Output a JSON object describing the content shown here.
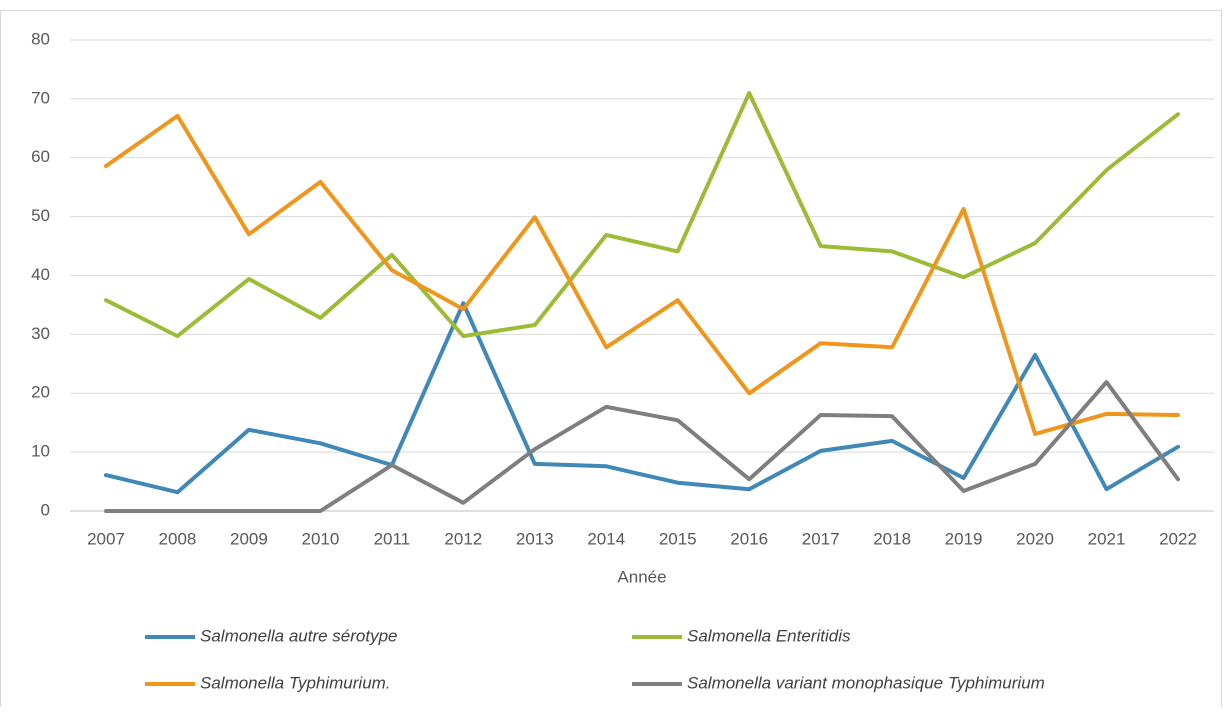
{
  "chart_data": {
    "type": "line",
    "x_label": "Année",
    "categories": [
      "2007",
      "2008",
      "2009",
      "2010",
      "2011",
      "2012",
      "2013",
      "2014",
      "2015",
      "2016",
      "2017",
      "2018",
      "2019",
      "2020",
      "2021",
      "2022"
    ],
    "ylim": [
      0,
      80
    ],
    "yticks": [
      0,
      10,
      20,
      30,
      40,
      50,
      60,
      70,
      80
    ],
    "grid": true,
    "legend": "bottom",
    "series": [
      {
        "name": "Salmonella autre sérotype",
        "color": "#3f88b8",
        "values": [
          6.1,
          3.2,
          13.8,
          11.5,
          7.8,
          35.3,
          8,
          7.6,
          4.8,
          3.7,
          10.2,
          11.9,
          5.6,
          26.5,
          3.7,
          10.9
        ]
      },
      {
        "name": "Salmonella Enteritidis",
        "color": "#9cbb36",
        "values": [
          35.8,
          29.7,
          39.4,
          32.8,
          43.5,
          29.7,
          31.6,
          46.9,
          44.1,
          71,
          45,
          44.1,
          39.7,
          45.5,
          57.9,
          67.4
        ]
      },
      {
        "name": "Salmonella Typhimurium.",
        "color": "#f0961c",
        "values": [
          58.6,
          67.1,
          47,
          55.9,
          40.9,
          34.3,
          49.9,
          27.8,
          35.8,
          20,
          28.5,
          27.8,
          51.3,
          13.1,
          16.5,
          16.3
        ]
      },
      {
        "name": "Salmonella variant monophasique Typhimurium",
        "color": "#7f7f7f",
        "values": [
          0,
          0,
          0,
          0,
          7.8,
          1.4,
          10.5,
          17.7,
          15.4,
          5.4,
          16.3,
          16.1,
          3.4,
          8,
          21.9,
          5.4
        ]
      }
    ]
  }
}
